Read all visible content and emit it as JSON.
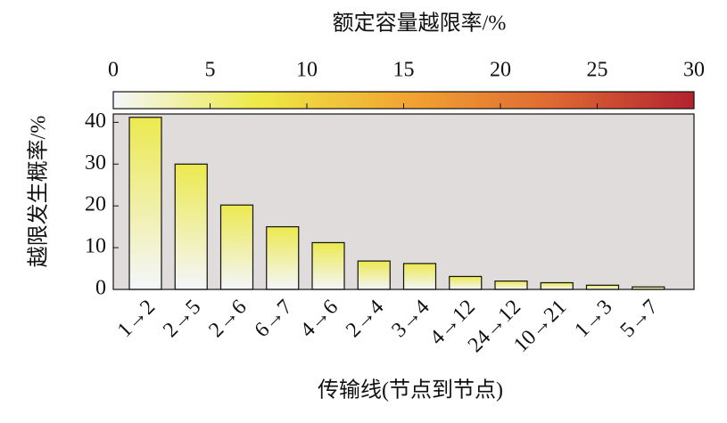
{
  "chart_data": {
    "type": "bar",
    "title": "额定容量越限率/%",
    "xlabel": "传输线(节点到节点)",
    "ylabel": "越限发生概率/%",
    "categories": [
      "1→2",
      "2→5",
      "2→6",
      "6→7",
      "4→6",
      "2→4",
      "3→4",
      "4→12",
      "24→12",
      "10→21",
      "1→3",
      "5→7"
    ],
    "values": [
      41.2,
      30,
      20.2,
      15,
      11.2,
      6.8,
      6.2,
      3.1,
      2.0,
      1.6,
      1.0,
      0.6
    ],
    "color": "#ece94f",
    "ylim": [
      0,
      42
    ],
    "yticks": [
      0,
      10,
      20,
      30,
      40
    ],
    "colorbar": {
      "lim": [
        0,
        30
      ],
      "ticks": [
        0,
        5,
        10,
        15,
        20,
        25,
        30
      ],
      "colors": [
        "#f4f6fb",
        "#eeea45",
        "#f2a631",
        "#e06a33",
        "#b3222f"
      ]
    },
    "background": "#e0dcdc"
  }
}
